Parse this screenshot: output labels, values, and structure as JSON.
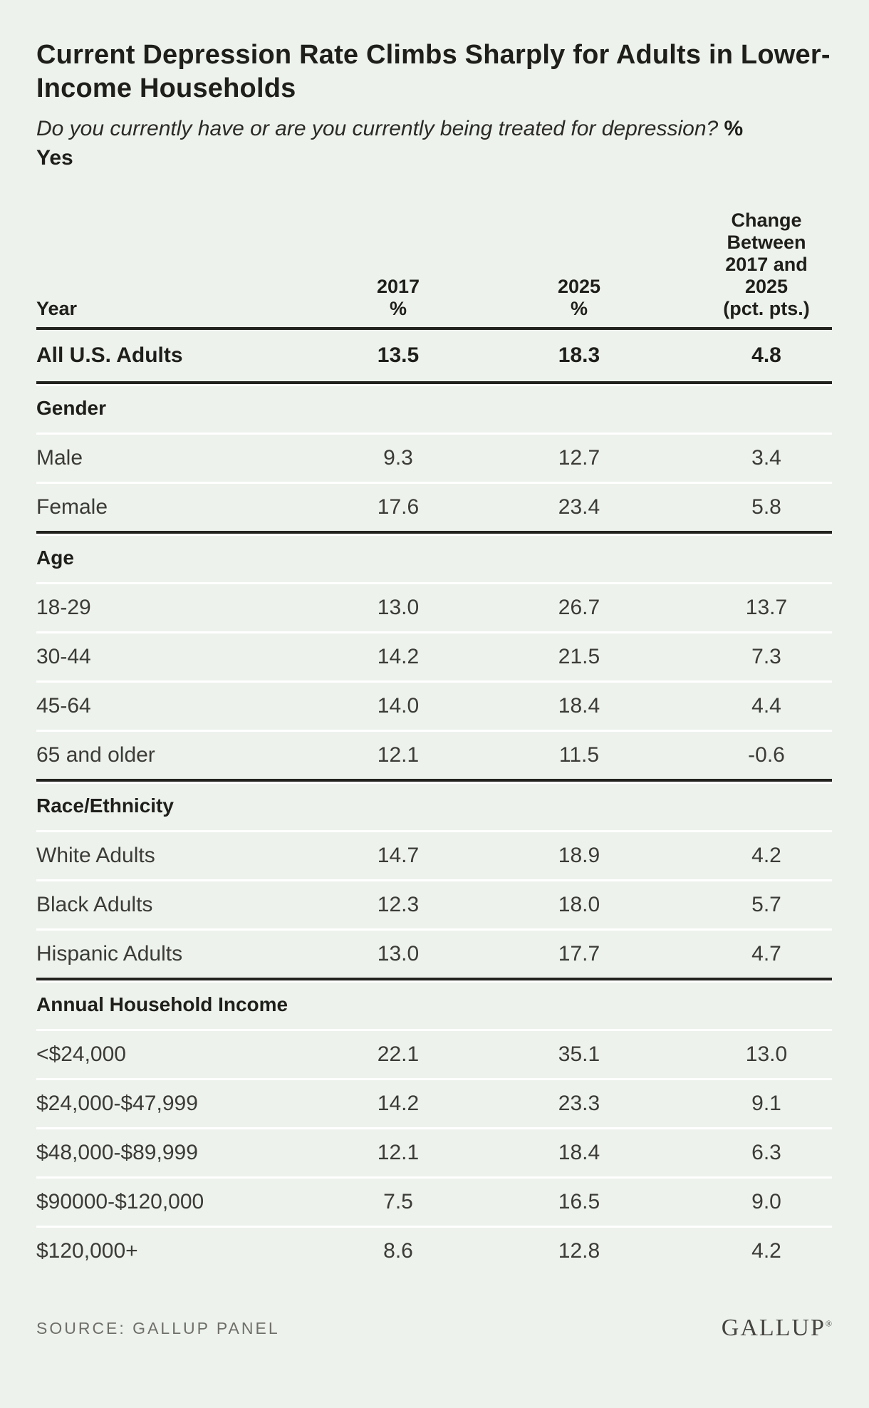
{
  "page": {
    "background": "#edf2ec"
  },
  "chart_data": {
    "type": "table",
    "title": "Current Depression Rate Climbs Sharply for Adults in Lower-Income Households",
    "subtitle_question": "Do you currently have or are you currently being treated for depression?",
    "subtitle_answer": "%\nYes",
    "columns": [
      "Year",
      "2017\n%",
      "2025\n%",
      "Change\nBetween\n2017 and\n2025\n(pct. pts.)"
    ],
    "summary_row": [
      "All U.S. Adults",
      "13.5",
      "18.3",
      "4.8"
    ],
    "sections": [
      {
        "header": "Gender",
        "rows": [
          [
            "Male",
            "9.3",
            "12.7",
            "3.4"
          ],
          [
            "Female",
            "17.6",
            "23.4",
            "5.8"
          ]
        ]
      },
      {
        "header": "Age",
        "rows": [
          [
            "18-29",
            "13.0",
            "26.7",
            "13.7"
          ],
          [
            "30-44",
            "14.2",
            "21.5",
            "7.3"
          ],
          [
            "45-64",
            "14.0",
            "18.4",
            "4.4"
          ],
          [
            "65 and older",
            "12.1",
            "11.5",
            "-0.6"
          ]
        ]
      },
      {
        "header": "Race/Ethnicity",
        "rows": [
          [
            "White Adults",
            "14.7",
            "18.9",
            "4.2"
          ],
          [
            "Black Adults",
            "12.3",
            "18.0",
            "5.7"
          ],
          [
            "Hispanic Adults",
            "13.0",
            "17.7",
            "4.7"
          ]
        ]
      },
      {
        "header": "Annual Household Income",
        "rows": [
          [
            "<$24,000",
            "22.1",
            "35.1",
            "13.0"
          ],
          [
            "$24,000-$47,999",
            "14.2",
            "23.3",
            "9.1"
          ],
          [
            "$48,000-$89,999",
            "12.1",
            "18.4",
            "6.3"
          ],
          [
            "$90000-$120,000",
            "7.5",
            "16.5",
            "9.0"
          ],
          [
            "$120,000+",
            "8.6",
            "12.8",
            "4.2"
          ]
        ]
      }
    ],
    "source": "SOURCE: GALLUP PANEL",
    "brand": "GALLUP",
    "brand_mark": "®",
    "colors": {
      "background": "#edf2ec",
      "ink": "#1e1e1b",
      "body_text": "#3b3b37",
      "rule_dark": "#22221f",
      "rule_light": "#ffffff",
      "source_gray": "#6f6f69",
      "logo": "#454440"
    }
  }
}
